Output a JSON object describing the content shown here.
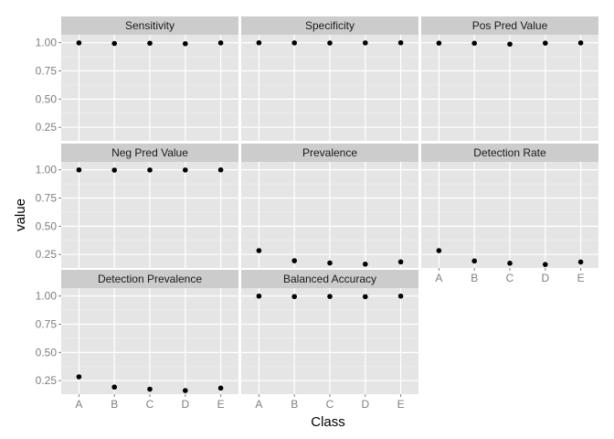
{
  "chart_data": {
    "type": "scatter",
    "facet_layout": "wrap 3 columns",
    "xlabel": "Class",
    "ylabel": "value",
    "categories": [
      "A",
      "B",
      "C",
      "D",
      "E"
    ],
    "ylim": [
      0.13,
      1.07
    ],
    "y_ticks": [
      0.25,
      0.5,
      0.75,
      1.0
    ],
    "y_tick_labels": [
      "0.25",
      "0.50",
      "0.75",
      "1.00"
    ],
    "grid": true,
    "legend": "none",
    "colors": {
      "panel": "#e5e5e5",
      "strip": "#cccccc",
      "grid": "#ffffff",
      "point": "#000000"
    },
    "panels": [
      {
        "title": "Sensitivity",
        "values": [
          0.998,
          0.993,
          0.995,
          0.991,
          0.998
        ]
      },
      {
        "title": "Specificity",
        "values": [
          0.999,
          0.998,
          0.997,
          0.998,
          0.999
        ]
      },
      {
        "title": "Pos Pred Value",
        "values": [
          0.996,
          0.995,
          0.987,
          0.996,
          0.998
        ]
      },
      {
        "title": "Neg Pred Value",
        "values": [
          0.999,
          0.997,
          0.998,
          0.998,
          0.999
        ]
      },
      {
        "title": "Prevalence",
        "values": [
          0.284,
          0.194,
          0.174,
          0.164,
          0.184
        ]
      },
      {
        "title": "Detection Rate",
        "values": [
          0.284,
          0.192,
          0.172,
          0.161,
          0.183
        ]
      },
      {
        "title": "Detection Prevalence",
        "values": [
          0.284,
          0.193,
          0.174,
          0.162,
          0.184
        ]
      },
      {
        "title": "Balanced Accuracy",
        "values": [
          0.999,
          0.995,
          0.996,
          0.994,
          0.999
        ]
      }
    ]
  }
}
